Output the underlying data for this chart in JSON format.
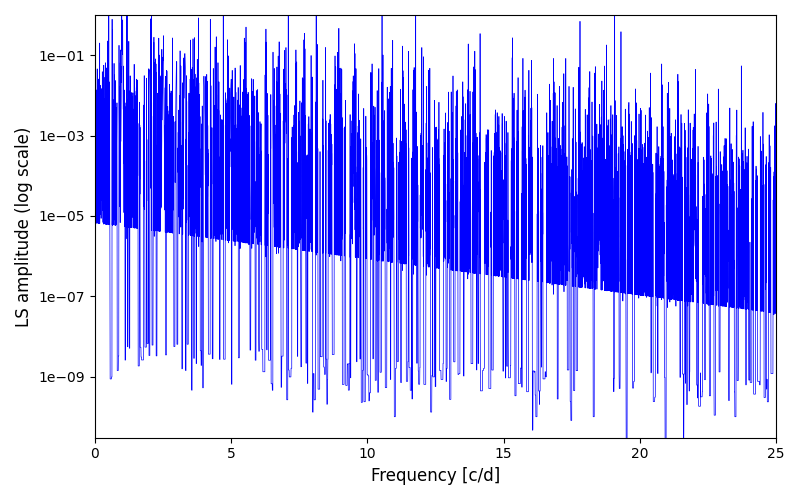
{
  "xlabel": "Frequency [c/d]",
  "ylabel": "LS amplitude (log scale)",
  "xlim": [
    0,
    25
  ],
  "line_color": "#0000ff",
  "line_width": 0.5,
  "figsize": [
    8.0,
    5.0
  ],
  "dpi": 100,
  "freq_max": 25.0,
  "n_points": 8000,
  "seed": 137,
  "yticks": [
    1e-09,
    1e-07,
    1e-05,
    0.001,
    0.1
  ],
  "ylim": [
    3e-11,
    1.0
  ]
}
